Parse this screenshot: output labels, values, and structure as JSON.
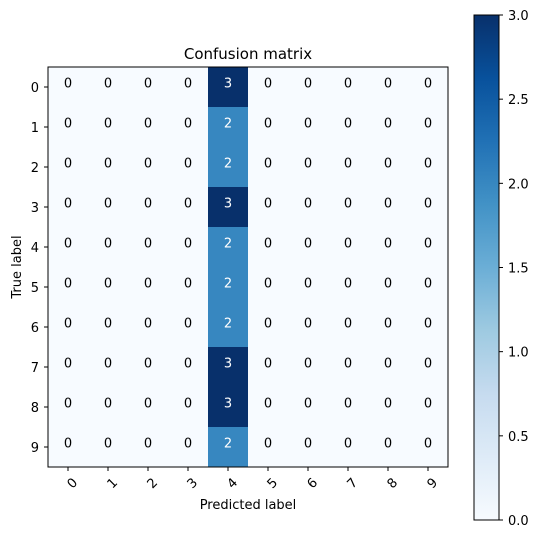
{
  "chart_data": {
    "type": "heatmap",
    "title": "Confusion matrix",
    "xlabel": "Predicted label",
    "ylabel": "True label",
    "x_categories": [
      "0",
      "1",
      "2",
      "3",
      "4",
      "5",
      "6",
      "7",
      "8",
      "9"
    ],
    "y_categories": [
      "0",
      "1",
      "2",
      "3",
      "4",
      "5",
      "6",
      "7",
      "8",
      "9"
    ],
    "values": [
      [
        0,
        0,
        0,
        0,
        3,
        0,
        0,
        0,
        0,
        0
      ],
      [
        0,
        0,
        0,
        0,
        2,
        0,
        0,
        0,
        0,
        0
      ],
      [
        0,
        0,
        0,
        0,
        2,
        0,
        0,
        0,
        0,
        0
      ],
      [
        0,
        0,
        0,
        0,
        3,
        0,
        0,
        0,
        0,
        0
      ],
      [
        0,
        0,
        0,
        0,
        2,
        0,
        0,
        0,
        0,
        0
      ],
      [
        0,
        0,
        0,
        0,
        2,
        0,
        0,
        0,
        0,
        0
      ],
      [
        0,
        0,
        0,
        0,
        2,
        0,
        0,
        0,
        0,
        0
      ],
      [
        0,
        0,
        0,
        0,
        3,
        0,
        0,
        0,
        0,
        0
      ],
      [
        0,
        0,
        0,
        0,
        3,
        0,
        0,
        0,
        0,
        0
      ],
      [
        0,
        0,
        0,
        0,
        2,
        0,
        0,
        0,
        0,
        0
      ]
    ],
    "colormap": "Blues",
    "color_range": [
      0,
      3
    ],
    "colorbar_ticks": [
      "0.0",
      "0.5",
      "1.0",
      "1.5",
      "2.0",
      "2.5",
      "3.0"
    ],
    "x_tick_rotation": 45,
    "grid": false,
    "colors": {
      "low": "#f7fbff",
      "high": "#08306b",
      "text_dark": "#000000",
      "text_light": "#ffffff"
    }
  }
}
